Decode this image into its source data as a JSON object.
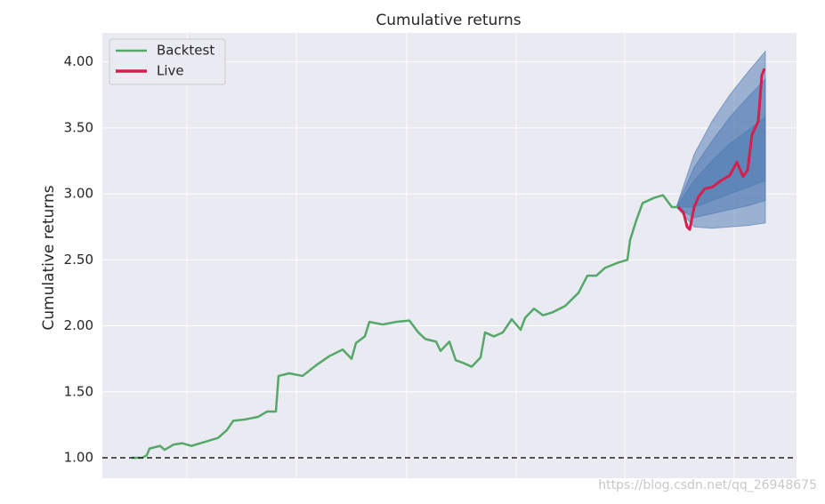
{
  "chart_data": {
    "type": "line",
    "title": "Cumulative returns",
    "y_label": "Cumulative returns",
    "xlim": [
      0,
      780
    ],
    "xticks": [
      95,
      218,
      342,
      465,
      587,
      710
    ],
    "ylim": [
      0.845,
      4.22
    ],
    "yticks": [
      {
        "value": 1,
        "label": "1.00"
      },
      {
        "value": 1.5,
        "label": "1.50"
      },
      {
        "value": 2,
        "label": "2.00"
      },
      {
        "value": 2.5,
        "label": "2.50"
      },
      {
        "value": 3,
        "label": "3.00"
      },
      {
        "value": 3.5,
        "label": "3.50"
      },
      {
        "value": 4,
        "label": "4.00"
      }
    ],
    "grid": true,
    "legend": "upper left",
    "hline": 1,
    "series": [
      {
        "name": "Backtest",
        "color": "#55a868",
        "x": [
          33,
          45,
          50,
          53,
          65,
          70,
          80,
          90,
          100,
          115,
          130,
          140,
          147,
          160,
          175,
          185,
          195,
          198,
          210,
          225,
          240,
          255,
          270,
          280,
          285,
          295,
          300,
          315,
          330,
          345,
          355,
          363,
          375,
          380,
          390,
          397,
          405,
          415,
          425,
          430,
          440,
          450,
          460,
          470,
          475,
          485,
          495,
          505,
          520,
          535,
          545,
          555,
          565,
          580,
          590,
          593,
          600,
          607,
          620,
          630,
          640,
          647
        ],
        "values": [
          1.0,
          1.0,
          1.02,
          1.07,
          1.09,
          1.06,
          1.1,
          1.11,
          1.09,
          1.12,
          1.15,
          1.21,
          1.28,
          1.29,
          1.31,
          1.35,
          1.35,
          1.62,
          1.64,
          1.62,
          1.7,
          1.77,
          1.82,
          1.75,
          1.87,
          1.92,
          2.03,
          2.01,
          2.03,
          2.04,
          1.95,
          1.9,
          1.88,
          1.81,
          1.88,
          1.74,
          1.72,
          1.69,
          1.76,
          1.95,
          1.92,
          1.95,
          2.05,
          1.97,
          2.06,
          2.13,
          2.08,
          2.1,
          2.15,
          2.25,
          2.38,
          2.38,
          2.44,
          2.48,
          2.5,
          2.65,
          2.8,
          2.93,
          2.97,
          2.99,
          2.9,
          2.9
        ]
      },
      {
        "name": "Live",
        "color": "#d41f4f",
        "x": [
          647,
          653,
          657,
          660,
          665,
          670,
          677,
          685,
          695,
          705,
          713,
          720,
          725,
          730,
          737,
          741,
          744
        ],
        "values": [
          2.9,
          2.86,
          2.75,
          2.73,
          2.9,
          2.98,
          3.04,
          3.05,
          3.1,
          3.14,
          3.24,
          3.13,
          3.18,
          3.45,
          3.55,
          3.9,
          3.95
        ]
      }
    ],
    "cone_color": "#4c78b0",
    "cone_x": [
      645,
      665,
      685,
      705,
      725,
      745
    ],
    "cone": [
      {
        "lower": [
          2.9,
          2.75,
          2.74,
          2.75,
          2.76,
          2.78
        ],
        "upper": [
          2.9,
          3.3,
          3.55,
          3.75,
          3.92,
          4.08
        ]
      },
      {
        "lower": [
          2.9,
          2.82,
          2.85,
          2.88,
          2.91,
          2.95
        ],
        "upper": [
          2.9,
          3.2,
          3.4,
          3.58,
          3.73,
          3.87
        ]
      },
      {
        "lower": [
          2.9,
          2.9,
          2.95,
          3.0,
          3.05,
          3.1
        ],
        "upper": [
          2.9,
          3.1,
          3.25,
          3.38,
          3.48,
          3.58
        ]
      }
    ],
    "watermark": "https://blog.csdn.net/qq_26948675"
  }
}
